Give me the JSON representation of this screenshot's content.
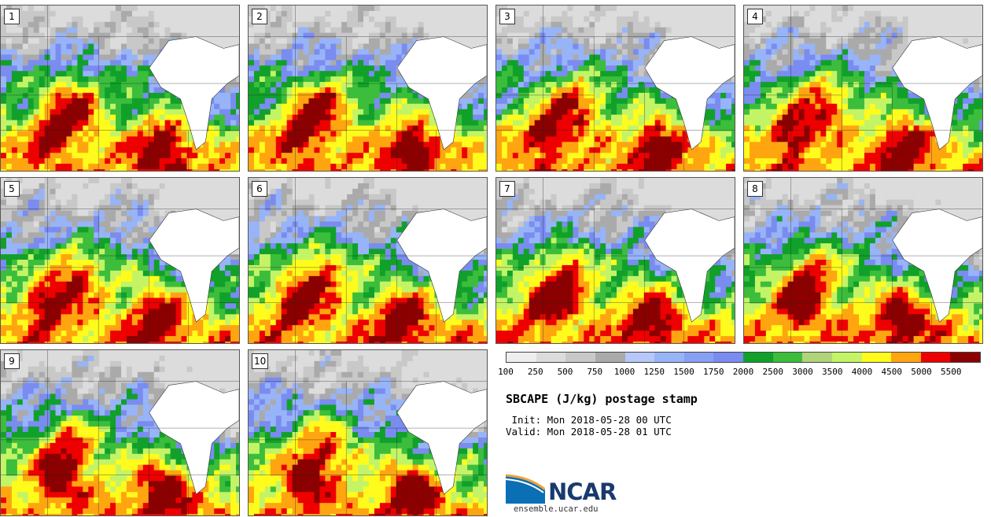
{
  "panels": [
    {
      "label": "1"
    },
    {
      "label": "2"
    },
    {
      "label": "3"
    },
    {
      "label": "4"
    },
    {
      "label": "5"
    },
    {
      "label": "6"
    },
    {
      "label": "7"
    },
    {
      "label": "8"
    },
    {
      "label": "9"
    },
    {
      "label": "10"
    }
  ],
  "legend": {
    "ticks": [
      "100",
      "250",
      "500",
      "750",
      "1000",
      "1250",
      "1500",
      "1750",
      "2000",
      "2500",
      "3000",
      "3500",
      "4000",
      "4500",
      "5000",
      "5500"
    ],
    "colors": [
      "#eeeeee",
      "#dcdcdc",
      "#c8c8c8",
      "#aaaaaa",
      "#b6c8fa",
      "#98b4f8",
      "#87a0f3",
      "#7a8cf0",
      "#11a12a",
      "#3cbd3c",
      "#b0d47a",
      "#c3f466",
      "#fffb1c",
      "#ffa510",
      "#ee0000",
      "#8b0000"
    ]
  },
  "product_title": "SBCAPE (J/kg) postage stamp",
  "init_line": " Init: Mon 2018-05-28 00 UTC",
  "valid_line": "Valid: Mon 2018-05-28 01 UTC",
  "logo": {
    "text": "NCAR",
    "url": "ensemble.ucar.edu"
  }
}
